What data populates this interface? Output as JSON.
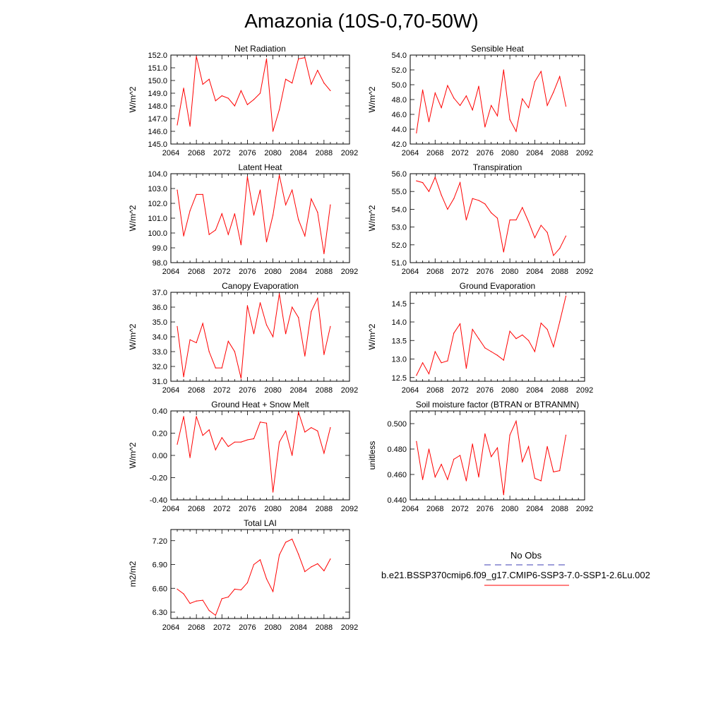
{
  "title": "Amazonia (10S-0,70-50W)",
  "legend": {
    "obs_label": "No Obs",
    "obs_color": "#3c3cb4",
    "model_label": "b.e21.BSSP370cmip6.f09_g17.CMIP6-SSP3-7.0-SSP1-2.6Lu.002",
    "model_color": "#ff0000"
  },
  "chart_data": [
    {
      "type": "line",
      "title": "Net Radiation",
      "ylabel": "W/m^2",
      "xlim": [
        2064,
        2092
      ],
      "ylim": [
        145.0,
        152.0
      ],
      "x_ticks": [
        2064,
        2068,
        2072,
        2076,
        2080,
        2084,
        2088,
        2092
      ],
      "y_ticks": [
        "145.0",
        "146.0",
        "147.0",
        "148.0",
        "149.0",
        "150.0",
        "151.0",
        "152.0"
      ],
      "grid": false,
      "series": [
        {
          "x": [
            2065,
            2066,
            2067,
            2068,
            2069,
            2070,
            2071,
            2072,
            2073,
            2074,
            2075,
            2076,
            2077,
            2078,
            2079,
            2080,
            2081,
            2082,
            2083,
            2084,
            2085,
            2086,
            2087,
            2088,
            2089
          ],
          "values": [
            146.5,
            149.4,
            146.4,
            151.9,
            149.7,
            150.1,
            148.4,
            148.8,
            148.6,
            148.0,
            149.2,
            148.1,
            148.5,
            149.0,
            151.7,
            146.0,
            147.7,
            150.1,
            149.8,
            151.7,
            151.8,
            149.7,
            150.8,
            149.8,
            149.2
          ]
        }
      ]
    },
    {
      "type": "line",
      "title": "Sensible Heat",
      "ylabel": "W/m^2",
      "xlim": [
        2064,
        2092
      ],
      "ylim": [
        42.0,
        54.0
      ],
      "x_ticks": [
        2064,
        2068,
        2072,
        2076,
        2080,
        2084,
        2088,
        2092
      ],
      "y_ticks": [
        "42.0",
        "44.0",
        "46.0",
        "48.0",
        "50.0",
        "52.0",
        "54.0"
      ],
      "grid": false,
      "series": [
        {
          "x": [
            2065,
            2066,
            2067,
            2068,
            2069,
            2070,
            2071,
            2072,
            2073,
            2074,
            2075,
            2076,
            2077,
            2078,
            2079,
            2080,
            2081,
            2082,
            2083,
            2084,
            2085,
            2086,
            2087,
            2088,
            2089
          ],
          "values": [
            43.5,
            49.3,
            45.0,
            48.9,
            46.9,
            49.9,
            48.2,
            47.2,
            48.5,
            46.6,
            49.8,
            44.3,
            47.2,
            45.8,
            52.0,
            45.3,
            43.7,
            48.1,
            46.9,
            50.4,
            51.8,
            47.2,
            49.0,
            51.1,
            47.1
          ]
        }
      ]
    },
    {
      "type": "line",
      "title": "Latent Heat",
      "ylabel": "W/m^2",
      "xlim": [
        2064,
        2092
      ],
      "ylim": [
        98.0,
        104.0
      ],
      "x_ticks": [
        2064,
        2068,
        2072,
        2076,
        2080,
        2084,
        2088,
        2092
      ],
      "y_ticks": [
        "98.0",
        "99.0",
        "100.0",
        "101.0",
        "102.0",
        "103.0",
        "104.0"
      ],
      "grid": false,
      "series": [
        {
          "x": [
            2065,
            2066,
            2067,
            2068,
            2069,
            2070,
            2071,
            2072,
            2073,
            2074,
            2075,
            2076,
            2077,
            2078,
            2079,
            2080,
            2081,
            2082,
            2083,
            2084,
            2085,
            2086,
            2087,
            2088,
            2089
          ],
          "values": [
            102.9,
            99.8,
            101.5,
            102.6,
            102.6,
            99.9,
            100.2,
            101.3,
            99.9,
            101.3,
            99.2,
            103.8,
            101.2,
            102.9,
            99.4,
            101.2,
            103.9,
            101.9,
            102.9,
            100.9,
            99.8,
            102.3,
            101.4,
            98.6,
            101.9
          ]
        }
      ]
    },
    {
      "type": "line",
      "title": "Transpiration",
      "ylabel": "W/m^2",
      "xlim": [
        2064,
        2092
      ],
      "ylim": [
        51.0,
        56.0
      ],
      "x_ticks": [
        2064,
        2068,
        2072,
        2076,
        2080,
        2084,
        2088,
        2092
      ],
      "y_ticks": [
        "51.0",
        "52.0",
        "53.0",
        "54.0",
        "55.0",
        "56.0"
      ],
      "grid": false,
      "series": [
        {
          "x": [
            2065,
            2066,
            2067,
            2068,
            2069,
            2070,
            2071,
            2072,
            2073,
            2074,
            2075,
            2076,
            2077,
            2078,
            2079,
            2080,
            2081,
            2082,
            2083,
            2084,
            2085,
            2086,
            2087,
            2088,
            2089
          ],
          "values": [
            55.6,
            55.5,
            55.0,
            55.8,
            54.8,
            54.0,
            54.6,
            55.5,
            53.4,
            54.6,
            54.5,
            54.3,
            53.8,
            53.5,
            51.6,
            53.4,
            53.4,
            54.1,
            53.3,
            52.4,
            53.1,
            52.7,
            51.4,
            51.8,
            52.5
          ]
        }
      ]
    },
    {
      "type": "line",
      "title": "Canopy Evaporation",
      "ylabel": "W/m^2",
      "xlim": [
        2064,
        2092
      ],
      "ylim": [
        31.0,
        37.0
      ],
      "x_ticks": [
        2064,
        2068,
        2072,
        2076,
        2080,
        2084,
        2088,
        2092
      ],
      "y_ticks": [
        "31.0",
        "32.0",
        "33.0",
        "34.0",
        "35.0",
        "36.0",
        "37.0"
      ],
      "grid": false,
      "series": [
        {
          "x": [
            2065,
            2066,
            2067,
            2068,
            2069,
            2070,
            2071,
            2072,
            2073,
            2074,
            2075,
            2076,
            2077,
            2078,
            2079,
            2080,
            2081,
            2082,
            2083,
            2084,
            2085,
            2086,
            2087,
            2088,
            2089
          ],
          "values": [
            34.7,
            31.3,
            33.8,
            33.6,
            34.9,
            33.0,
            31.9,
            31.9,
            33.7,
            33.0,
            31.2,
            36.1,
            34.2,
            36.3,
            34.8,
            34.0,
            36.9,
            34.2,
            36.0,
            35.3,
            32.7,
            35.7,
            36.6,
            32.8,
            34.7
          ]
        }
      ]
    },
    {
      "type": "line",
      "title": "Ground Evaporation",
      "ylabel": "W/m^2",
      "xlim": [
        2064,
        2092
      ],
      "ylim": [
        12.4,
        14.8
      ],
      "x_ticks": [
        2064,
        2068,
        2072,
        2076,
        2080,
        2084,
        2088,
        2092
      ],
      "y_ticks": [
        "12.5",
        "13.0",
        "13.5",
        "14.0",
        "14.5"
      ],
      "grid": false,
      "series": [
        {
          "x": [
            2065,
            2066,
            2067,
            2068,
            2069,
            2070,
            2071,
            2072,
            2073,
            2074,
            2075,
            2076,
            2077,
            2078,
            2079,
            2080,
            2081,
            2082,
            2083,
            2084,
            2085,
            2086,
            2087,
            2088,
            2089
          ],
          "values": [
            12.56,
            12.9,
            12.6,
            13.2,
            12.9,
            12.95,
            13.7,
            13.95,
            12.75,
            13.8,
            13.55,
            13.3,
            13.2,
            13.1,
            12.97,
            13.75,
            13.55,
            13.65,
            13.5,
            13.2,
            13.97,
            13.8,
            13.33,
            14.0,
            14.7
          ]
        }
      ]
    },
    {
      "type": "line",
      "title": "Ground Heat + Snow Melt",
      "ylabel": "W/m^2",
      "xlim": [
        2064,
        2092
      ],
      "ylim": [
        -0.4,
        0.4
      ],
      "x_ticks": [
        2064,
        2068,
        2072,
        2076,
        2080,
        2084,
        2088,
        2092
      ],
      "y_ticks": [
        "-0.40",
        "-0.20",
        "0.00",
        "0.20",
        "0.40"
      ],
      "grid": false,
      "series": [
        {
          "x": [
            2065,
            2066,
            2067,
            2068,
            2069,
            2070,
            2071,
            2072,
            2073,
            2074,
            2075,
            2076,
            2077,
            2078,
            2079,
            2080,
            2081,
            2082,
            2083,
            2084,
            2085,
            2086,
            2087,
            2088,
            2089
          ],
          "values": [
            0.1,
            0.35,
            -0.02,
            0.35,
            0.18,
            0.23,
            0.05,
            0.16,
            0.08,
            0.12,
            0.12,
            0.14,
            0.15,
            0.3,
            0.29,
            -0.33,
            0.12,
            0.22,
            0.0,
            0.39,
            0.21,
            0.25,
            0.22,
            0.02,
            0.25
          ]
        }
      ]
    },
    {
      "type": "line",
      "title": "Soil moisture factor (BTRAN or BTRANMN)",
      "ylabel": "unitless",
      "xlim": [
        2064,
        2092
      ],
      "ylim": [
        0.44,
        0.51
      ],
      "x_ticks": [
        2064,
        2068,
        2072,
        2076,
        2080,
        2084,
        2088,
        2092
      ],
      "y_ticks": [
        "0.440",
        "0.460",
        "0.480",
        "0.500"
      ],
      "grid": false,
      "series": [
        {
          "x": [
            2065,
            2066,
            2067,
            2068,
            2069,
            2070,
            2071,
            2072,
            2073,
            2074,
            2075,
            2076,
            2077,
            2078,
            2079,
            2080,
            2081,
            2082,
            2083,
            2084,
            2085,
            2086,
            2087,
            2088,
            2089
          ],
          "values": [
            0.486,
            0.456,
            0.48,
            0.458,
            0.468,
            0.456,
            0.472,
            0.475,
            0.455,
            0.484,
            0.458,
            0.492,
            0.474,
            0.481,
            0.444,
            0.491,
            0.502,
            0.47,
            0.482,
            0.457,
            0.455,
            0.482,
            0.462,
            0.463,
            0.491
          ]
        }
      ]
    },
    {
      "type": "line",
      "title": "Total LAI",
      "ylabel": "m2/m2",
      "xlim": [
        2064,
        2092
      ],
      "ylim": [
        6.22,
        7.34
      ],
      "x_ticks": [
        2064,
        2068,
        2072,
        2076,
        2080,
        2084,
        2088,
        2092
      ],
      "y_ticks": [
        "6.30",
        "6.60",
        "6.90",
        "7.20"
      ],
      "grid": false,
      "series": [
        {
          "x": [
            2065,
            2066,
            2067,
            2068,
            2069,
            2070,
            2071,
            2072,
            2073,
            2074,
            2075,
            2076,
            2077,
            2078,
            2079,
            2080,
            2081,
            2082,
            2083,
            2084,
            2085,
            2086,
            2087,
            2088,
            2089
          ],
          "values": [
            6.59,
            6.53,
            6.41,
            6.44,
            6.45,
            6.32,
            6.26,
            6.47,
            6.49,
            6.59,
            6.58,
            6.67,
            6.9,
            6.96,
            6.72,
            6.56,
            7.02,
            7.18,
            7.22,
            7.03,
            6.81,
            6.87,
            6.91,
            6.82,
            6.97
          ]
        }
      ]
    }
  ]
}
